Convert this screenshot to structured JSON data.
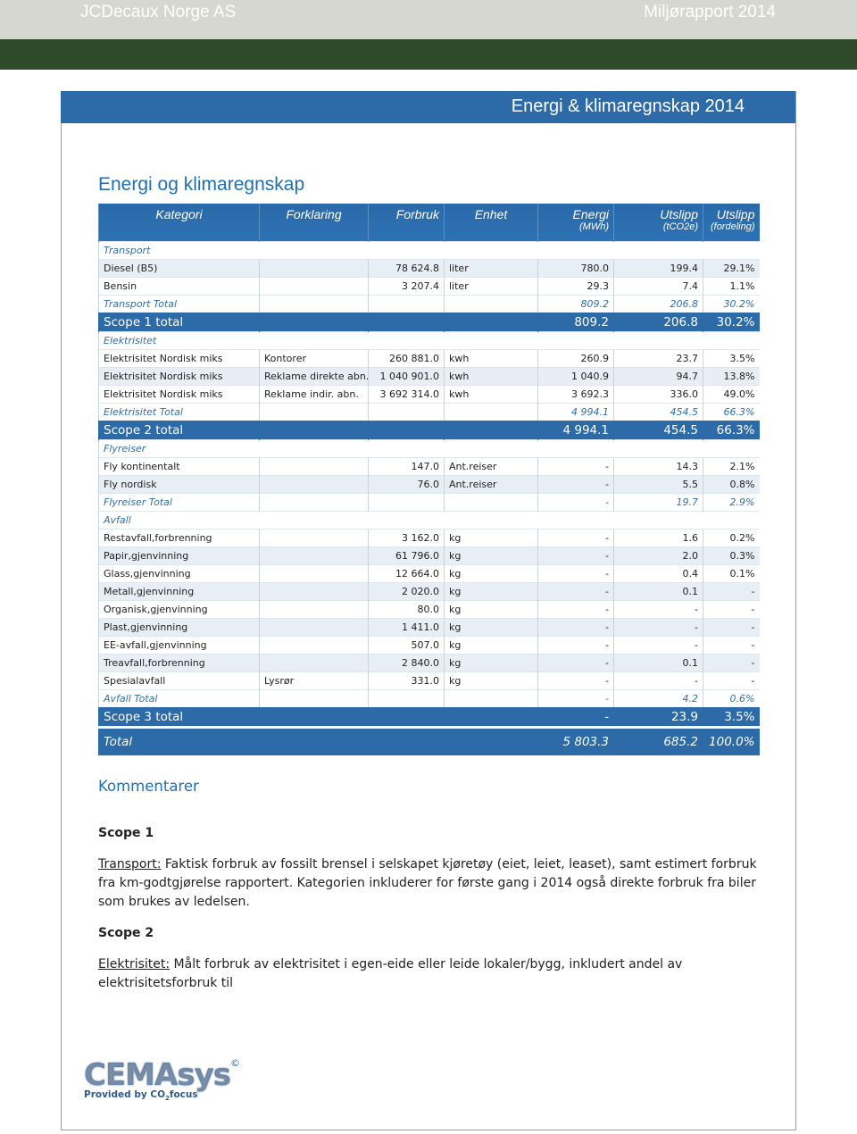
{
  "header": {
    "company": "JCDecaux Norge AS",
    "report": "Miljørapport 2014"
  },
  "banner": "Energi & klimaregnskap 2014",
  "heading": "Energi og klimaregnskap",
  "table": {
    "columns": [
      {
        "label": "Kategori"
      },
      {
        "label": "Forklaring"
      },
      {
        "label": "Forbruk"
      },
      {
        "label": "Enhet"
      },
      {
        "label": "Energi",
        "sub": "(MWh)"
      },
      {
        "label": "Utslipp",
        "sub": "(tCO2e)"
      },
      {
        "label": "Utslipp",
        "sub": "(fordeling)"
      }
    ],
    "rows": [
      {
        "type": "section",
        "cells": [
          "Transport"
        ]
      },
      {
        "type": "item",
        "cells": [
          "Diesel (B5)",
          null,
          "78 624.8",
          "liter",
          "780.0",
          "199.4",
          "29.1%"
        ]
      },
      {
        "type": "item",
        "cells": [
          "Bensin",
          null,
          "3 207.4",
          "liter",
          "29.3",
          "7.4",
          "1.1%"
        ]
      },
      {
        "type": "subtotal",
        "cells": [
          "Transport Total",
          null,
          null,
          null,
          "809.2",
          "206.8",
          "30.2%"
        ]
      },
      {
        "type": "scope",
        "cells": [
          "Scope 1 total",
          null,
          null,
          null,
          "809.2",
          "206.8",
          "30.2%"
        ]
      },
      {
        "type": "section",
        "cells": [
          "Elektrisitet"
        ]
      },
      {
        "type": "item",
        "cells": [
          "Elektrisitet Nordisk miks",
          "Kontorer",
          "260 881.0",
          "kwh",
          "260.9",
          "23.7",
          "3.5%"
        ]
      },
      {
        "type": "item",
        "cells": [
          "Elektrisitet Nordisk miks",
          "Reklame direkte abn.",
          "1 040 901.0",
          "kwh",
          "1 040.9",
          "94.7",
          "13.8%"
        ]
      },
      {
        "type": "item",
        "cells": [
          "Elektrisitet Nordisk miks",
          "Reklame indir. abn.",
          "3 692 314.0",
          "kwh",
          "3 692.3",
          "336.0",
          "49.0%"
        ]
      },
      {
        "type": "subtotal",
        "cells": [
          "Elektrisitet Total",
          null,
          null,
          null,
          "4 994.1",
          "454.5",
          "66.3%"
        ]
      },
      {
        "type": "scope",
        "cells": [
          "Scope 2 total",
          null,
          null,
          null,
          "4 994.1",
          "454.5",
          "66.3%"
        ]
      },
      {
        "type": "section",
        "cells": [
          "Flyreiser"
        ]
      },
      {
        "type": "item",
        "cells": [
          "Fly kontinentalt",
          null,
          "147.0",
          "Ant.reiser",
          "-",
          "14.3",
          "2.1%"
        ]
      },
      {
        "type": "item",
        "cells": [
          "Fly nordisk",
          null,
          "76.0",
          "Ant.reiser",
          "-",
          "5.5",
          "0.8%"
        ]
      },
      {
        "type": "subtotal",
        "cells": [
          "Flyreiser Total",
          null,
          null,
          null,
          "-",
          "19.7",
          "2.9%"
        ]
      },
      {
        "type": "section",
        "cells": [
          "Avfall"
        ]
      },
      {
        "type": "item",
        "cells": [
          "Restavfall,forbrenning",
          null,
          "3 162.0",
          "kg",
          "-",
          "1.6",
          "0.2%"
        ]
      },
      {
        "type": "item",
        "cells": [
          "Papir,gjenvinning",
          null,
          "61 796.0",
          "kg",
          "-",
          "2.0",
          "0.3%"
        ]
      },
      {
        "type": "item",
        "cells": [
          "Glass,gjenvinning",
          null,
          "12 664.0",
          "kg",
          "-",
          "0.4",
          "0.1%"
        ]
      },
      {
        "type": "item",
        "cells": [
          "Metall,gjenvinning",
          null,
          "2 020.0",
          "kg",
          "-",
          "0.1",
          "-"
        ]
      },
      {
        "type": "item",
        "cells": [
          "Organisk,gjenvinning",
          null,
          "80.0",
          "kg",
          "-",
          "-",
          "-"
        ]
      },
      {
        "type": "item",
        "cells": [
          "Plast,gjenvinning",
          null,
          "1 411.0",
          "kg",
          "-",
          "-",
          "-"
        ]
      },
      {
        "type": "item",
        "cells": [
          "EE-avfall,gjenvinning",
          null,
          "507.0",
          "kg",
          "-",
          "-",
          "-"
        ]
      },
      {
        "type": "item",
        "cells": [
          "Treavfall,forbrenning",
          null,
          "2 840.0",
          "kg",
          "-",
          "0.1",
          "-"
        ]
      },
      {
        "type": "item",
        "cells": [
          "Spesialavfall",
          "Lysrør",
          "331.0",
          "kg",
          "-",
          "-",
          "-"
        ]
      },
      {
        "type": "subtotal",
        "cells": [
          "Avfall Total",
          null,
          null,
          null,
          "-",
          "4.2",
          "0.6%"
        ]
      },
      {
        "type": "scope",
        "cells": [
          "Scope 3 total",
          null,
          null,
          null,
          "-",
          "23.9",
          "3.5%"
        ]
      },
      {
        "type": "total",
        "cells": [
          "Total",
          null,
          null,
          null,
          "5 803.3",
          "685.2",
          "100.0%"
        ]
      }
    ]
  },
  "comments": {
    "heading": "Kommentarer",
    "sections": [
      {
        "title": "Scope 1",
        "label": "Transport:",
        "text": "Faktisk forbruk av fossilt brensel i selskapet kjøretøy (eiet, leiet, leaset), samt estimert forbruk fra km-godtgjørelse rapportert. Kategorien inkluderer for første gang i 2014 også direkte forbruk fra biler som brukes av ledelsen."
      },
      {
        "title": "Scope 2",
        "label": "Elektrisitet:",
        "text": "Målt forbruk av elektrisitet i egen-eide eller leide lokaler/bygg, inkludert andel av elektrisitetsforbruk til"
      }
    ]
  },
  "logo": {
    "name": "CEMAsys",
    "mark": "©",
    "tagline": "Provided by",
    "brand": "CO",
    "sub": "2",
    "brand_end": "focus"
  }
}
